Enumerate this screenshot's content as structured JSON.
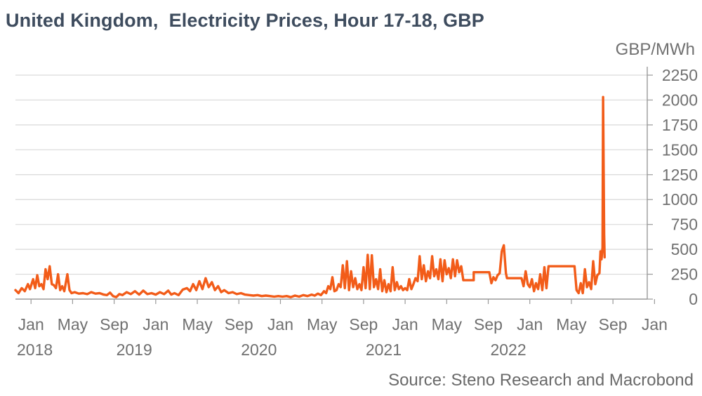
{
  "chart_data": {
    "type": "line",
    "title": "United Kingdom,  Electricity Prices, Hour 17-18, GBP",
    "ylabel": "GBP/MWh",
    "xlabel": "",
    "source": "Source: Steno Research and Macrobond",
    "ylim": [
      0,
      2250
    ],
    "yticks": [
      0,
      250,
      500,
      750,
      1000,
      1250,
      1500,
      1750,
      2000,
      2250
    ],
    "y_axis_side": "right",
    "grid": true,
    "x_range_months": [
      -1.5,
      59.3
    ],
    "month_ticks": [
      {
        "m": 0,
        "label": "Jan"
      },
      {
        "m": 4,
        "label": "May"
      },
      {
        "m": 8,
        "label": "Sep"
      },
      {
        "m": 12,
        "label": "Jan"
      },
      {
        "m": 16,
        "label": "May"
      },
      {
        "m": 20,
        "label": "Sep"
      },
      {
        "m": 24,
        "label": "Jan"
      },
      {
        "m": 28,
        "label": "May"
      },
      {
        "m": 32,
        "label": "Sep"
      },
      {
        "m": 36,
        "label": "Jan"
      },
      {
        "m": 40,
        "label": "May"
      },
      {
        "m": 44,
        "label": "Sep"
      },
      {
        "m": 48,
        "label": "Jan"
      },
      {
        "m": 52,
        "label": "May"
      },
      {
        "m": 56,
        "label": "Sep"
      },
      {
        "m": 60,
        "label": "Jan"
      }
    ],
    "year_labels": [
      {
        "m": -1.6,
        "label": "2018"
      },
      {
        "m": 8.2,
        "label": "2019"
      },
      {
        "m": 20.2,
        "label": "2020"
      },
      {
        "m": 32.2,
        "label": "2021"
      },
      {
        "m": 44.2,
        "label": "2022"
      }
    ],
    "series": [
      {
        "name": "Electricity Price, Hour 17-18",
        "color": "#f25c19",
        "x_unit": "months since Jan 2018",
        "points": [
          [
            -1.5,
            90
          ],
          [
            -1.2,
            60
          ],
          [
            -0.9,
            110
          ],
          [
            -0.6,
            80
          ],
          [
            -0.3,
            150
          ],
          [
            -0.1,
            100
          ],
          [
            0.2,
            200
          ],
          [
            0.4,
            110
          ],
          [
            0.6,
            240
          ],
          [
            0.8,
            130
          ],
          [
            1.0,
            150
          ],
          [
            1.2,
            100
          ],
          [
            1.4,
            300
          ],
          [
            1.6,
            200
          ],
          [
            1.8,
            330
          ],
          [
            2.0,
            150
          ],
          [
            2.2,
            140
          ],
          [
            2.4,
            110
          ],
          [
            2.6,
            250
          ],
          [
            2.8,
            90
          ],
          [
            3.0,
            130
          ],
          [
            3.2,
            80
          ],
          [
            3.5,
            250
          ],
          [
            3.7,
            90
          ],
          [
            3.9,
            60
          ],
          [
            4.2,
            70
          ],
          [
            4.6,
            55
          ],
          [
            5.0,
            60
          ],
          [
            5.4,
            50
          ],
          [
            5.8,
            70
          ],
          [
            6.2,
            55
          ],
          [
            6.6,
            60
          ],
          [
            7.0,
            45
          ],
          [
            7.3,
            40
          ],
          [
            7.6,
            65
          ],
          [
            7.9,
            30
          ],
          [
            8.2,
            20
          ],
          [
            8.5,
            50
          ],
          [
            8.8,
            40
          ],
          [
            9.2,
            70
          ],
          [
            9.6,
            50
          ],
          [
            10.0,
            80
          ],
          [
            10.4,
            45
          ],
          [
            10.8,
            85
          ],
          [
            11.2,
            50
          ],
          [
            11.6,
            60
          ],
          [
            12.0,
            45
          ],
          [
            12.4,
            70
          ],
          [
            12.8,
            50
          ],
          [
            13.2,
            85
          ],
          [
            13.5,
            45
          ],
          [
            13.8,
            60
          ],
          [
            14.2,
            40
          ],
          [
            14.6,
            95
          ],
          [
            15.0,
            110
          ],
          [
            15.3,
            80
          ],
          [
            15.6,
            150
          ],
          [
            15.9,
            90
          ],
          [
            16.2,
            180
          ],
          [
            16.5,
            100
          ],
          [
            16.8,
            210
          ],
          [
            17.1,
            120
          ],
          [
            17.4,
            170
          ],
          [
            17.7,
            90
          ],
          [
            18.0,
            130
          ],
          [
            18.3,
            70
          ],
          [
            18.6,
            90
          ],
          [
            19.0,
            60
          ],
          [
            19.4,
            70
          ],
          [
            19.8,
            50
          ],
          [
            20.2,
            60
          ],
          [
            20.6,
            45
          ],
          [
            21.0,
            40
          ],
          [
            21.4,
            35
          ],
          [
            21.8,
            40
          ],
          [
            22.2,
            30
          ],
          [
            22.6,
            35
          ],
          [
            23.0,
            30
          ],
          [
            23.4,
            25
          ],
          [
            23.8,
            30
          ],
          [
            24.2,
            25
          ],
          [
            24.6,
            30
          ],
          [
            25.0,
            20
          ],
          [
            25.4,
            35
          ],
          [
            25.8,
            25
          ],
          [
            26.2,
            40
          ],
          [
            26.6,
            30
          ],
          [
            27.0,
            45
          ],
          [
            27.3,
            35
          ],
          [
            27.6,
            55
          ],
          [
            27.9,
            40
          ],
          [
            28.2,
            80
          ],
          [
            28.4,
            60
          ],
          [
            28.6,
            130
          ],
          [
            28.8,
            100
          ],
          [
            29.0,
            220
          ],
          [
            29.2,
            80
          ],
          [
            29.4,
            90
          ],
          [
            29.6,
            150
          ],
          [
            29.8,
            120
          ],
          [
            30.0,
            340
          ],
          [
            30.2,
            110
          ],
          [
            30.4,
            380
          ],
          [
            30.6,
            90
          ],
          [
            30.8,
            280
          ],
          [
            31.0,
            120
          ],
          [
            31.2,
            210
          ],
          [
            31.4,
            100
          ],
          [
            31.6,
            150
          ],
          [
            31.8,
            90
          ],
          [
            32.0,
            320
          ],
          [
            32.2,
            110
          ],
          [
            32.4,
            445
          ],
          [
            32.6,
            100
          ],
          [
            32.8,
            440
          ],
          [
            33.0,
            120
          ],
          [
            33.2,
            200
          ],
          [
            33.4,
            100
          ],
          [
            33.6,
            300
          ],
          [
            33.8,
            80
          ],
          [
            34.0,
            190
          ],
          [
            34.2,
            70
          ],
          [
            34.4,
            150
          ],
          [
            34.6,
            80
          ],
          [
            34.8,
            320
          ],
          [
            35.0,
            90
          ],
          [
            35.2,
            170
          ],
          [
            35.4,
            100
          ],
          [
            35.6,
            130
          ],
          [
            35.8,
            90
          ],
          [
            36.0,
            110
          ],
          [
            36.2,
            90
          ],
          [
            36.4,
            200
          ],
          [
            36.6,
            100
          ],
          [
            36.8,
            150
          ],
          [
            37.0,
            210
          ],
          [
            37.2,
            180
          ],
          [
            37.4,
            430
          ],
          [
            37.6,
            200
          ],
          [
            37.8,
            340
          ],
          [
            38.0,
            180
          ],
          [
            38.2,
            280
          ],
          [
            38.4,
            210
          ],
          [
            38.6,
            430
          ],
          [
            38.8,
            230
          ],
          [
            39.0,
            300
          ],
          [
            39.2,
            200
          ],
          [
            39.4,
            400
          ],
          [
            39.6,
            180
          ],
          [
            39.8,
            390
          ],
          [
            40.0,
            250
          ],
          [
            40.2,
            310
          ],
          [
            40.4,
            210
          ],
          [
            40.6,
            400
          ],
          [
            40.8,
            230
          ],
          [
            41.0,
            390
          ],
          [
            41.2,
            270
          ],
          [
            41.4,
            330
          ],
          [
            41.6,
            190
          ],
          [
            41.8,
            190
          ],
          [
            42.6,
            190
          ],
          [
            42.6,
            270
          ],
          [
            44.1,
            270
          ],
          [
            44.3,
            160
          ],
          [
            44.5,
            220
          ],
          [
            44.7,
            190
          ],
          [
            44.9,
            240
          ],
          [
            45.1,
            260
          ],
          [
            45.3,
            480
          ],
          [
            45.5,
            540
          ],
          [
            45.7,
            260
          ],
          [
            45.8,
            210
          ],
          [
            47.2,
            210
          ],
          [
            47.4,
            130
          ],
          [
            47.6,
            280
          ],
          [
            47.8,
            150
          ],
          [
            48.0,
            120
          ],
          [
            48.2,
            200
          ],
          [
            48.4,
            80
          ],
          [
            48.6,
            160
          ],
          [
            48.8,
            100
          ],
          [
            49.0,
            250
          ],
          [
            49.2,
            90
          ],
          [
            49.4,
            320
          ],
          [
            49.6,
            110
          ],
          [
            49.8,
            330
          ],
          [
            52.3,
            330
          ],
          [
            52.5,
            90
          ],
          [
            52.7,
            60
          ],
          [
            52.9,
            160
          ],
          [
            53.1,
            60
          ],
          [
            53.3,
            300
          ],
          [
            53.5,
            120
          ],
          [
            53.7,
            170
          ],
          [
            53.9,
            100
          ],
          [
            54.1,
            380
          ],
          [
            54.3,
            150
          ],
          [
            54.5,
            240
          ],
          [
            54.7,
            260
          ],
          [
            54.8,
            480
          ],
          [
            54.9,
            400
          ],
          [
            55.0,
            520
          ],
          [
            55.05,
            2030
          ],
          [
            55.15,
            650
          ],
          [
            55.2,
            420
          ]
        ]
      }
    ]
  }
}
